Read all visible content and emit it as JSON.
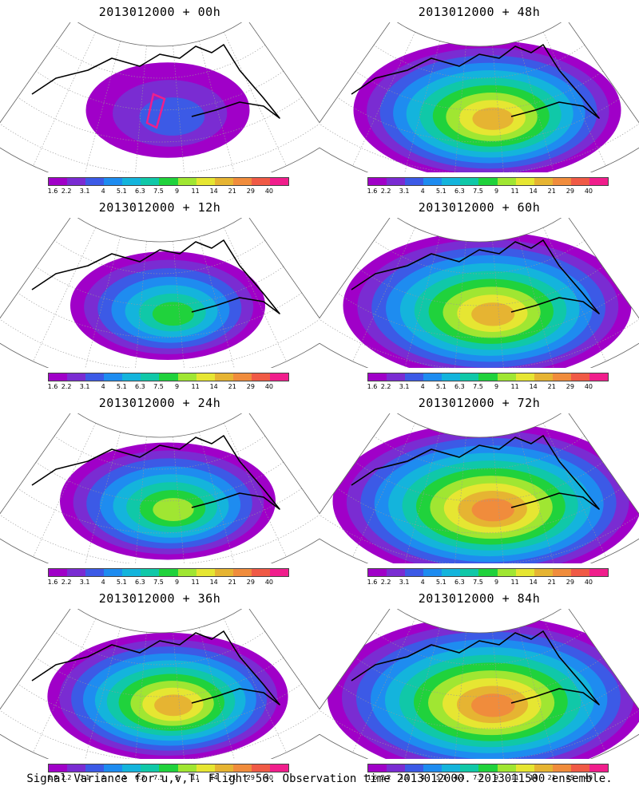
{
  "panels": [
    {
      "title": "2013012000 + 00h",
      "intensity": 0.25,
      "spread": 0.25,
      "box": true
    },
    {
      "title": "2013012000 + 48h",
      "intensity": 0.82,
      "spread": 0.75,
      "box": false
    },
    {
      "title": "2013012000 + 12h",
      "intensity": 0.55,
      "spread": 0.4,
      "box": false
    },
    {
      "title": "2013012000 + 60h",
      "intensity": 0.85,
      "spread": 0.85,
      "box": false
    },
    {
      "title": "2013012000 + 24h",
      "intensity": 0.7,
      "spread": 0.5,
      "box": false
    },
    {
      "title": "2013012000 + 72h",
      "intensity": 0.88,
      "spread": 0.95,
      "box": false
    },
    {
      "title": "2013012000 + 36h",
      "intensity": 0.85,
      "spread": 0.62,
      "box": false
    },
    {
      "title": "2013012000 + 84h",
      "intensity": 0.9,
      "spread": 1.0,
      "box": false
    }
  ],
  "colorbar": {
    "labels": [
      "1.6",
      "2.2",
      "3.1",
      "4",
      "5.1",
      "6.3",
      "7.5",
      "9",
      "11",
      "14",
      "21",
      "29",
      "40"
    ],
    "colors": [
      "#a000c8",
      "#7a2cd2",
      "#3c5ae6",
      "#1e8cf0",
      "#14b4dc",
      "#10c8a8",
      "#20d23c",
      "#a0e632",
      "#e6e632",
      "#e6b432",
      "#f08c3c",
      "#f05a46",
      "#f01e8c"
    ]
  },
  "caption": "Signal Variance for u,v,T. Flight 56. Observation time 2013012000. 2013011500 ensemble."
}
